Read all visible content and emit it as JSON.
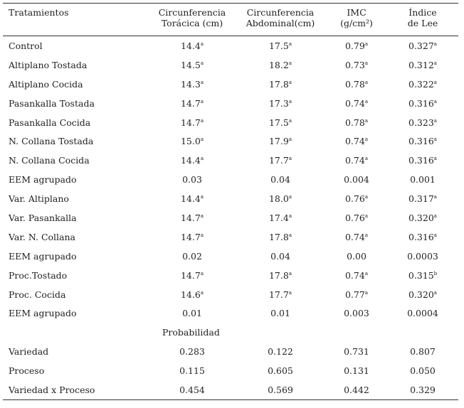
{
  "headers": [
    {
      "line1": "Tratamientos",
      "line2": ""
    },
    {
      "line1": "Circunferencia",
      "line2": "Torácica (cm)"
    },
    {
      "line1": "Circunferencia",
      "line2": "Abdominal(cm)"
    },
    {
      "line1": "IMC",
      "line2": "(g/cm²)"
    },
    {
      "line1": "Índice",
      "line2": "de Lee"
    }
  ],
  "rows": [
    {
      "label": "Control",
      "cells": [
        {
          "v": "14.4",
          "s": "a"
        },
        {
          "v": "17.5",
          "s": "a"
        },
        {
          "v": "0.79",
          "s": "a"
        },
        {
          "v": "0.327",
          "s": "a"
        }
      ]
    },
    {
      "label": "Altiplano Tostada",
      "cells": [
        {
          "v": "14.5",
          "s": "a"
        },
        {
          "v": "18.2",
          "s": "a"
        },
        {
          "v": "0.73",
          "s": "a"
        },
        {
          "v": "0.312",
          "s": "a"
        }
      ]
    },
    {
      "label": "Altiplano Cocida",
      "cells": [
        {
          "v": "14.3",
          "s": "a"
        },
        {
          "v": "17.8",
          "s": "a"
        },
        {
          "v": "0.78",
          "s": "a"
        },
        {
          "v": "0.322",
          "s": "a"
        }
      ]
    },
    {
      "label": "Pasankalla Tostada",
      "cells": [
        {
          "v": "14.7",
          "s": "a"
        },
        {
          "v": "17.3",
          "s": "a"
        },
        {
          "v": "0.74",
          "s": "a"
        },
        {
          "v": "0.316",
          "s": "a"
        }
      ]
    },
    {
      "label": "Pasankalla Cocida",
      "cells": [
        {
          "v": "14.7",
          "s": "a"
        },
        {
          "v": "17.5",
          "s": "a"
        },
        {
          "v": "0.78",
          "s": "a"
        },
        {
          "v": "0.323",
          "s": "a"
        }
      ]
    },
    {
      "label": "N. Collana Tostada",
      "cells": [
        {
          "v": "15.0",
          "s": "a"
        },
        {
          "v": "17.9",
          "s": "a"
        },
        {
          "v": "0.74",
          "s": "a"
        },
        {
          "v": "0.316",
          "s": "a"
        }
      ]
    },
    {
      "label": "N. Collana Cocida",
      "cells": [
        {
          "v": "14.4",
          "s": "a"
        },
        {
          "v": "17.7",
          "s": "a"
        },
        {
          "v": "0.74",
          "s": "a"
        },
        {
          "v": "0.316",
          "s": "a"
        }
      ]
    },
    {
      "label": "EEM agrupado",
      "cells": [
        {
          "v": "0.03",
          "s": ""
        },
        {
          "v": "0.04",
          "s": ""
        },
        {
          "v": "0.004",
          "s": ""
        },
        {
          "v": "0.001",
          "s": ""
        }
      ]
    },
    {
      "label": "Var. Altiplano",
      "cells": [
        {
          "v": "14.4",
          "s": "a"
        },
        {
          "v": "18.0",
          "s": "a"
        },
        {
          "v": "0.76",
          "s": "a"
        },
        {
          "v": "0.317",
          "s": "a"
        }
      ]
    },
    {
      "label": "Var. Pasankalla",
      "cells": [
        {
          "v": "14.7",
          "s": "a"
        },
        {
          "v": "17.4",
          "s": "a"
        },
        {
          "v": "0.76",
          "s": "a"
        },
        {
          "v": "0.320",
          "s": "a"
        }
      ]
    },
    {
      "label": "Var. N. Collana",
      "cells": [
        {
          "v": "14.7",
          "s": "a"
        },
        {
          "v": "17.8",
          "s": "a"
        },
        {
          "v": "0.74",
          "s": "a"
        },
        {
          "v": "0.316",
          "s": "a"
        }
      ]
    },
    {
      "label": "EEM agrupado",
      "cells": [
        {
          "v": "0.02",
          "s": ""
        },
        {
          "v": "0.04",
          "s": ""
        },
        {
          "v": "0.00",
          "s": ""
        },
        {
          "v": "0.0003",
          "s": ""
        }
      ]
    },
    {
      "label": "Proc.Tostado",
      "cells": [
        {
          "v": "14.7",
          "s": "a"
        },
        {
          "v": "17.8",
          "s": "a"
        },
        {
          "v": "0.74",
          "s": "a"
        },
        {
          "v": "0.315",
          "s": "b"
        }
      ]
    },
    {
      "label": "Proc. Cocida",
      "cells": [
        {
          "v": "14.6",
          "s": "a"
        },
        {
          "v": "17.7",
          "s": "a"
        },
        {
          "v": "0.77",
          "s": "a"
        },
        {
          "v": "0.320",
          "s": "a"
        }
      ]
    },
    {
      "label": "EEM agrupado",
      "cells": [
        {
          "v": "0.01",
          "s": ""
        },
        {
          "v": "0.01",
          "s": ""
        },
        {
          "v": "0.003",
          "s": ""
        },
        {
          "v": "0.0004",
          "s": ""
        }
      ]
    }
  ],
  "probability_label": "Probabilidad",
  "probability_rows": [
    {
      "label": "Variedad",
      "cells": [
        {
          "v": "0.283",
          "s": ""
        },
        {
          "v": "0.122",
          "s": ""
        },
        {
          "v": "0.731",
          "s": ""
        },
        {
          "v": "0.807",
          "s": ""
        }
      ]
    },
    {
      "label": "Proceso",
      "cells": [
        {
          "v": "0.115",
          "s": ""
        },
        {
          "v": "0.605",
          "s": ""
        },
        {
          "v": "0.131",
          "s": ""
        },
        {
          "v": "0.050",
          "s": ""
        }
      ]
    },
    {
      "label": "Variedad x Proceso",
      "cells": [
        {
          "v": "0.454",
          "s": ""
        },
        {
          "v": "0.569",
          "s": ""
        },
        {
          "v": "0.442",
          "s": ""
        },
        {
          "v": "0.329",
          "s": ""
        }
      ]
    }
  ]
}
